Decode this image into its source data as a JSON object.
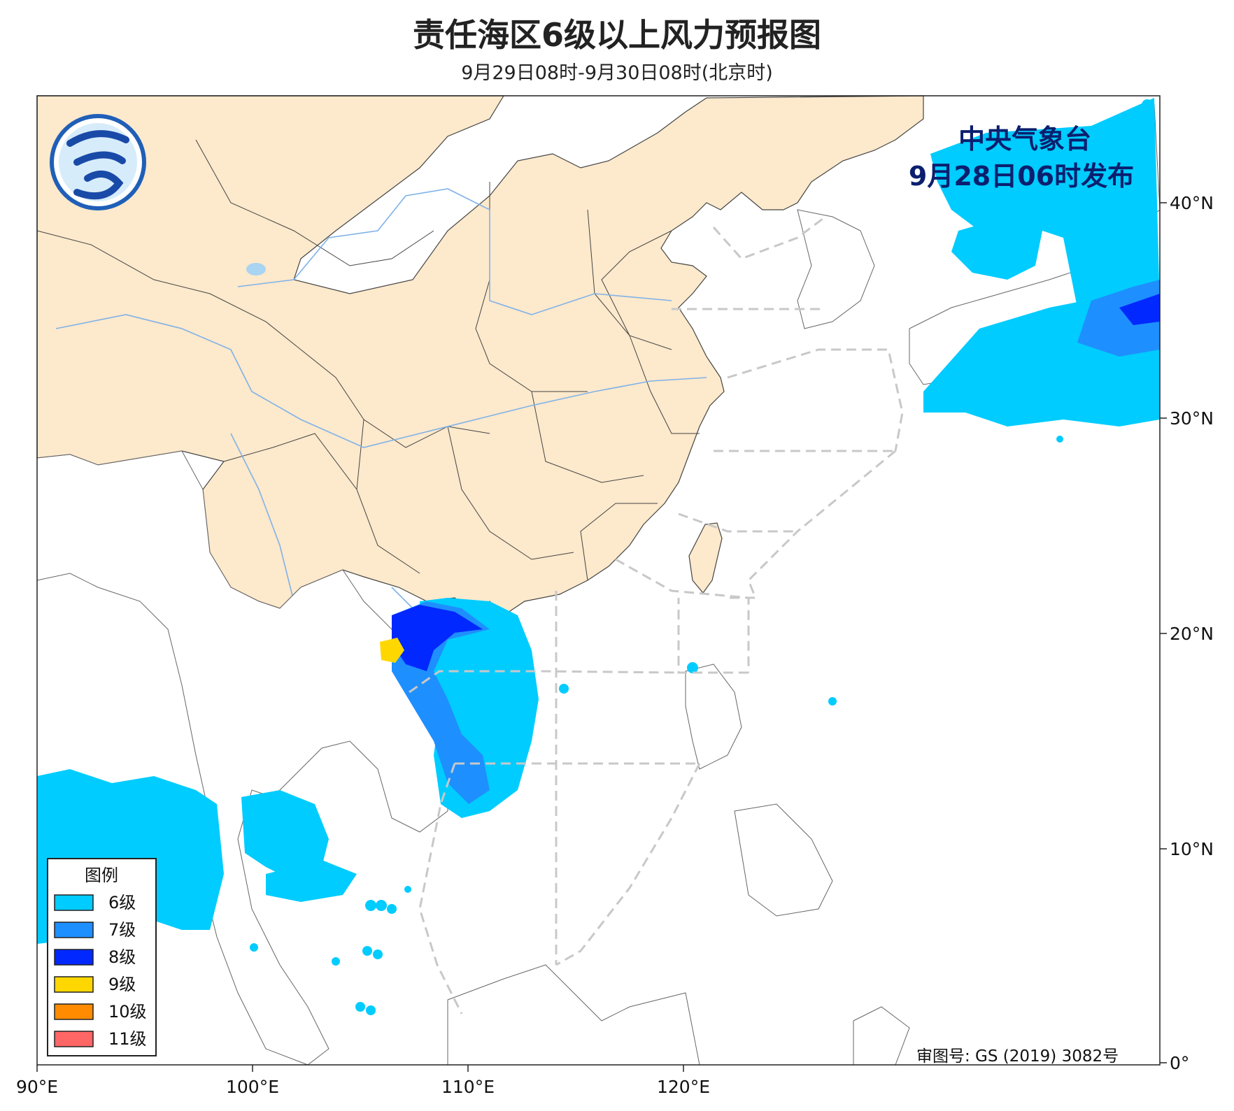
{
  "header": {
    "title": "责任海区6级以上风力预报图",
    "subtitle": "9月29日08时-9月30日08时(北京时)"
  },
  "issuer": {
    "name": "中央气象台",
    "issued": "9月28日06时发布"
  },
  "approval_number": "审图号: GS (2019) 3082号",
  "axes": {
    "lon_ticks": [
      "90°E",
      "100°E",
      "110°E",
      "120°E"
    ],
    "lat_ticks": [
      "40°N",
      "30°N",
      "20°N",
      "10°N",
      "0°"
    ]
  },
  "legend": {
    "title": "图例",
    "items": [
      {
        "label": "6级",
        "color": "#00ccff"
      },
      {
        "label": "7级",
        "color": "#1e8fff"
      },
      {
        "label": "8级",
        "color": "#0028ff"
      },
      {
        "label": "9级",
        "color": "#ffd700"
      },
      {
        "label": "10级",
        "color": "#ff8c00"
      },
      {
        "label": "11级",
        "color": "#ff6666"
      }
    ]
  },
  "colors": {
    "china_land": "#fde9cc",
    "other_land": "#ffffff",
    "sea": "#ffffff",
    "boundary": "#444444",
    "river": "#7fb2e8",
    "sea_zone": "#c8c8c8"
  },
  "logo_icon": "cma-logo-icon"
}
